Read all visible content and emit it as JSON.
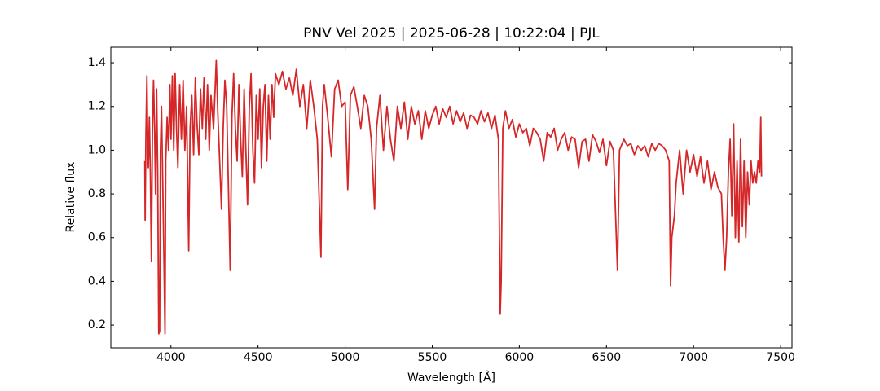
{
  "chart_data": {
    "type": "line",
    "title": "PNV Vel 2025 | 2025-06-28 | 10:22:04 | PJL",
    "x_label": "Wavelength [Å]",
    "y_label": "Relative flux",
    "xlim": [
      3655,
      7565
    ],
    "ylim": [
      0.096,
      1.471
    ],
    "xticks": [
      4000,
      4500,
      5000,
      5500,
      6000,
      6500,
      7000,
      7500
    ],
    "yticks": [
      0.2,
      0.4,
      0.6,
      0.8,
      {
        "value": 1.0,
        "label": "1.0"
      },
      1.2,
      1.4
    ],
    "grid": false,
    "series": [
      {
        "color": "#d62728",
        "x": [
          3850,
          3852,
          3856,
          3862,
          3866,
          3870,
          3876,
          3882,
          3888,
          3894,
          3900,
          3906,
          3912,
          3918,
          3924,
          3930,
          3935,
          3940,
          3946,
          3952,
          3958,
          3966,
          3970,
          3978,
          3986,
          3994,
          4000,
          4008,
          4016,
          4024,
          4032,
          4040,
          4050,
          4060,
          4070,
          4080,
          4090,
          4102,
          4110,
          4120,
          4130,
          4140,
          4150,
          4160,
          4170,
          4180,
          4190,
          4200,
          4210,
          4220,
          4230,
          4245,
          4260,
          4270,
          4280,
          4290,
          4300,
          4310,
          4320,
          4340,
          4350,
          4360,
          4370,
          4380,
          4390,
          4400,
          4410,
          4420,
          4430,
          4440,
          4450,
          4460,
          4470,
          4480,
          4490,
          4500,
          4510,
          4520,
          4530,
          4540,
          4550,
          4560,
          4570,
          4580,
          4590,
          4600,
          4620,
          4640,
          4660,
          4680,
          4700,
          4720,
          4740,
          4760,
          4780,
          4800,
          4820,
          4840,
          4861,
          4870,
          4880,
          4900,
          4921,
          4940,
          4960,
          4980,
          5000,
          5015,
          5030,
          5050,
          5070,
          5090,
          5110,
          5130,
          5150,
          5169,
          5180,
          5200,
          5220,
          5240,
          5260,
          5280,
          5300,
          5320,
          5340,
          5360,
          5380,
          5400,
          5420,
          5440,
          5460,
          5480,
          5500,
          5520,
          5540,
          5560,
          5580,
          5600,
          5620,
          5640,
          5660,
          5680,
          5700,
          5720,
          5740,
          5760,
          5780,
          5800,
          5820,
          5840,
          5860,
          5880,
          5890,
          5896,
          5905,
          5920,
          5940,
          5960,
          5980,
          6000,
          6020,
          6040,
          6060,
          6080,
          6100,
          6120,
          6140,
          6160,
          6180,
          6200,
          6220,
          6240,
          6260,
          6280,
          6300,
          6320,
          6340,
          6360,
          6380,
          6400,
          6420,
          6440,
          6460,
          6480,
          6500,
          6520,
          6540,
          6563,
          6575,
          6600,
          6620,
          6640,
          6660,
          6680,
          6700,
          6720,
          6740,
          6760,
          6780,
          6800,
          6820,
          6840,
          6860,
          6868,
          6875,
          6890,
          6900,
          6920,
          6940,
          6960,
          6980,
          7000,
          7020,
          7040,
          7060,
          7080,
          7100,
          7120,
          7140,
          7160,
          7170,
          7180,
          7190,
          7200,
          7210,
          7220,
          7230,
          7240,
          7250,
          7260,
          7270,
          7280,
          7290,
          7300,
          7310,
          7320,
          7330,
          7340,
          7350,
          7360,
          7370,
          7380,
          7386,
          7390
        ],
        "values": [
          0.95,
          0.68,
          1.05,
          1.34,
          1.08,
          0.92,
          1.15,
          0.9,
          0.49,
          1.1,
          1.32,
          1.1,
          0.8,
          1.28,
          0.9,
          0.16,
          0.17,
          1.0,
          1.2,
          0.9,
          0.6,
          0.16,
          0.95,
          1.15,
          1.0,
          1.3,
          1.05,
          1.34,
          1.0,
          1.35,
          1.1,
          0.92,
          1.3,
          1.05,
          1.32,
          1.0,
          1.2,
          0.54,
          1.1,
          1.25,
          0.98,
          1.33,
          1.12,
          0.98,
          1.28,
          1.1,
          1.33,
          1.05,
          1.3,
          1.0,
          1.25,
          1.1,
          1.41,
          1.15,
          0.95,
          0.73,
          1.1,
          1.32,
          1.2,
          0.45,
          1.15,
          1.35,
          1.1,
          0.95,
          1.3,
          1.05,
          0.88,
          1.28,
          1.0,
          0.75,
          1.2,
          1.35,
          1.0,
          0.85,
          1.25,
          1.05,
          1.28,
          0.92,
          1.2,
          1.3,
          0.95,
          1.25,
          1.05,
          1.3,
          1.15,
          1.35,
          1.3,
          1.36,
          1.28,
          1.33,
          1.25,
          1.37,
          1.2,
          1.3,
          1.1,
          1.32,
          1.2,
          1.05,
          0.51,
          1.2,
          1.3,
          1.15,
          0.97,
          1.28,
          1.32,
          1.2,
          1.22,
          0.82,
          1.25,
          1.29,
          1.2,
          1.1,
          1.25,
          1.2,
          1.05,
          0.73,
          1.1,
          1.25,
          1.0,
          1.2,
          1.05,
          0.95,
          1.2,
          1.1,
          1.22,
          1.05,
          1.2,
          1.12,
          1.18,
          1.05,
          1.18,
          1.1,
          1.16,
          1.2,
          1.12,
          1.19,
          1.15,
          1.2,
          1.12,
          1.18,
          1.13,
          1.17,
          1.1,
          1.16,
          1.15,
          1.12,
          1.18,
          1.13,
          1.17,
          1.1,
          1.16,
          1.05,
          0.25,
          0.4,
          1.1,
          1.18,
          1.1,
          1.14,
          1.06,
          1.12,
          1.08,
          1.1,
          1.02,
          1.1,
          1.08,
          1.05,
          0.95,
          1.08,
          1.06,
          1.1,
          1.0,
          1.05,
          1.08,
          1.0,
          1.06,
          1.05,
          0.92,
          1.04,
          1.05,
          0.95,
          1.07,
          1.04,
          0.99,
          1.05,
          0.93,
          1.04,
          1.0,
          0.45,
          1.0,
          1.05,
          1.02,
          1.03,
          0.98,
          1.02,
          1.0,
          1.02,
          0.97,
          1.03,
          1.0,
          1.03,
          1.02,
          1.0,
          0.95,
          0.38,
          0.6,
          0.7,
          0.85,
          1.0,
          0.8,
          1.0,
          0.9,
          0.98,
          0.88,
          0.97,
          0.85,
          0.95,
          0.82,
          0.9,
          0.83,
          0.8,
          0.6,
          0.45,
          0.6,
          0.9,
          1.05,
          0.7,
          1.12,
          0.6,
          0.95,
          0.58,
          1.05,
          0.65,
          0.95,
          0.6,
          0.9,
          0.75,
          0.95,
          0.85,
          0.9,
          0.85,
          0.95,
          0.9,
          1.15,
          0.88
        ]
      }
    ]
  }
}
